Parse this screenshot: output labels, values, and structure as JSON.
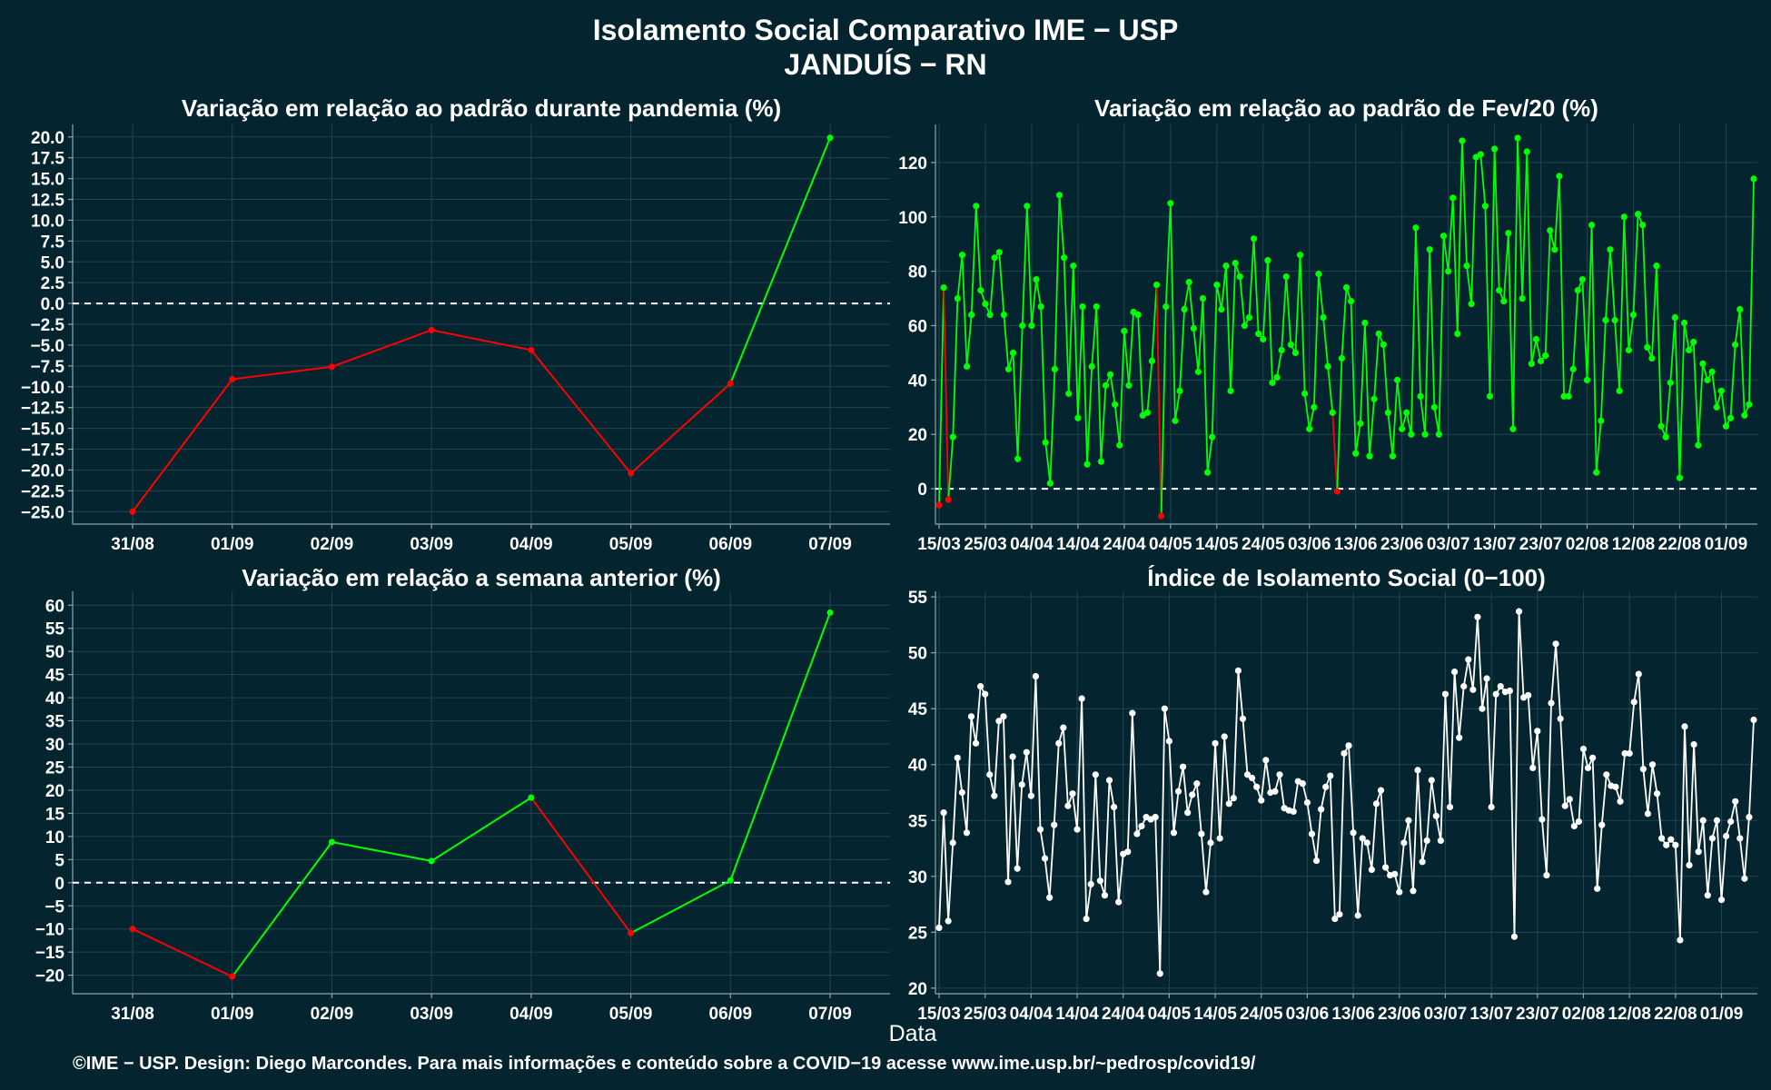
{
  "figure": {
    "title_line1": "Isolamento Social Comparativo IME − USP",
    "title_line2": "JANDUÍS − RN",
    "xlabel": "Data",
    "footer": "©IME − USP. Design: Diego Marcondes. Para mais informações e conteúdo sobre a COVID−19 acesse www.ime.usp.br/~pedrosp/covid19/"
  },
  "colors": {
    "background": "#04252f",
    "positive": "#00ff00",
    "negative": "#ff0000",
    "index_line": "#ffffff",
    "grid": "#1f4550"
  },
  "chart_data": [
    {
      "id": "panel-pandemic",
      "type": "line",
      "title": "Variação em relação ao padrão durante pandemia (%)",
      "categories": [
        "31/08",
        "01/09",
        "02/09",
        "03/09",
        "04/09",
        "05/09",
        "06/09",
        "07/09"
      ],
      "values": [
        -25.0,
        -9.1,
        -7.6,
        -3.2,
        -5.6,
        -20.4,
        -9.6,
        19.9
      ],
      "ylim": [
        -26.5,
        21.5
      ],
      "yticks": [
        20.0,
        17.5,
        15.0,
        12.5,
        10.0,
        7.5,
        5.0,
        2.5,
        0.0,
        -2.5,
        -5.0,
        -7.5,
        -10.0,
        -12.5,
        -15.0,
        -17.5,
        -20.0,
        -22.5,
        -25.0
      ],
      "ytick_labels": [
        "20.0",
        "17.5",
        "15.0",
        "12.5",
        "10.0",
        "7.5",
        "5.0",
        "2.5",
        "0.0",
        "−2.5",
        "−5.0",
        "−7.5",
        "−10.0",
        "−12.5",
        "−15.0",
        "−17.5",
        "−20.0",
        "−22.5",
        "−25.0"
      ],
      "color_rule": "sign",
      "zero_line": true
    },
    {
      "id": "panel-feb",
      "type": "line",
      "title": "Variação em relação ao padrão de Fev/20 (%)",
      "x_tick_labels": [
        "15/03",
        "25/03",
        "04/04",
        "14/04",
        "24/04",
        "04/05",
        "14/05",
        "24/05",
        "03/06",
        "13/06",
        "23/06",
        "03/07",
        "13/07",
        "23/07",
        "02/08",
        "12/08",
        "22/08",
        "01/09"
      ],
      "values": [
        -6,
        74,
        -4,
        19,
        70,
        86,
        45,
        64,
        104,
        73,
        68,
        64,
        85,
        87,
        64,
        44,
        50,
        11,
        60,
        104,
        60,
        77,
        67,
        17,
        2,
        44,
        108,
        85,
        35,
        82,
        26,
        67,
        9,
        45,
        67,
        10,
        38,
        42,
        31,
        16,
        58,
        38,
        65,
        64,
        27,
        28,
        47,
        75,
        -10,
        67,
        105,
        25,
        36,
        66,
        76,
        59,
        43,
        70,
        6,
        19,
        75,
        66,
        82,
        36,
        83,
        78,
        60,
        63,
        92,
        57,
        55,
        84,
        39,
        41,
        51,
        78,
        53,
        50,
        86,
        35,
        22,
        30,
        79,
        63,
        45,
        28,
        -1,
        48,
        74,
        69,
        13,
        24,
        61,
        12,
        33,
        57,
        53,
        28,
        12,
        40,
        22,
        28,
        20,
        96,
        34,
        20,
        88,
        30,
        20,
        93,
        80,
        107,
        57,
        128,
        82,
        68,
        122,
        123,
        104,
        34,
        125,
        73,
        69,
        94,
        22,
        129,
        70,
        124,
        46,
        55,
        47,
        49,
        95,
        88,
        115,
        34,
        34,
        44,
        73,
        77,
        40,
        97,
        6,
        25,
        62,
        88,
        62,
        36,
        100,
        51,
        64,
        101,
        97,
        52,
        48,
        82,
        23,
        19,
        39,
        63,
        4,
        61,
        51,
        54,
        16,
        46,
        40,
        43,
        30,
        36,
        23,
        26,
        53,
        66,
        27,
        31,
        114
      ],
      "ylim": [
        -13,
        134
      ],
      "yticks": [
        0,
        20,
        40,
        60,
        80,
        100,
        120
      ],
      "ytick_labels": [
        "0",
        "20",
        "40",
        "60",
        "80",
        "100",
        "120"
      ],
      "color_rule": "sign",
      "zero_line": true
    },
    {
      "id": "panel-week",
      "type": "line",
      "title": "Variação em relação a semana anterior (%)",
      "categories": [
        "31/08",
        "01/09",
        "02/09",
        "03/09",
        "04/09",
        "05/09",
        "06/09",
        "07/09"
      ],
      "values": [
        -10.0,
        -20.3,
        8.8,
        4.7,
        18.4,
        -10.9,
        0.5,
        58.4
      ],
      "ylim": [
        -24,
        63
      ],
      "yticks": [
        60,
        55,
        50,
        45,
        40,
        35,
        30,
        25,
        20,
        15,
        10,
        5,
        0,
        -5,
        -10,
        -15,
        -20
      ],
      "ytick_labels": [
        "60",
        "55",
        "50",
        "45",
        "40",
        "35",
        "30",
        "25",
        "20",
        "15",
        "10",
        "5",
        "0",
        "−5",
        "−10",
        "−15",
        "−20"
      ],
      "color_rule": "sign",
      "zero_line": true
    },
    {
      "id": "panel-index",
      "type": "line",
      "title": "Índice de Isolamento Social (0−100)",
      "x_tick_labels": [
        "15/03",
        "25/03",
        "04/04",
        "14/04",
        "24/04",
        "04/05",
        "14/05",
        "24/05",
        "03/06",
        "13/06",
        "23/06",
        "03/07",
        "13/07",
        "23/07",
        "02/08",
        "12/08",
        "22/08",
        "01/09"
      ],
      "values": [
        25.4,
        35.7,
        26.0,
        33.0,
        40.6,
        37.5,
        33.9,
        44.3,
        41.9,
        47.0,
        46.3,
        39.1,
        37.2,
        43.9,
        44.3,
        29.5,
        40.7,
        30.7,
        38.2,
        41.1,
        37.2,
        47.9,
        34.2,
        31.6,
        28.1,
        34.6,
        41.9,
        43.3,
        36.3,
        37.4,
        34.2,
        45.9,
        26.2,
        29.3,
        39.1,
        29.6,
        28.3,
        38.6,
        36.2,
        27.7,
        32.0,
        32.2,
        44.6,
        33.8,
        34.5,
        35.3,
        35.1,
        35.3,
        21.3,
        45.0,
        42.1,
        33.9,
        37.6,
        39.8,
        35.7,
        37.3,
        38.3,
        33.8,
        28.6,
        33.0,
        41.9,
        33.4,
        42.5,
        36.5,
        37.0,
        48.4,
        44.1,
        39.1,
        38.8,
        38.0,
        36.8,
        40.4,
        37.5,
        37.6,
        39.1,
        36.1,
        35.9,
        35.8,
        38.5,
        38.3,
        36.6,
        33.8,
        31.4,
        36.0,
        38.0,
        39.0,
        26.2,
        26.6,
        41.0,
        41.7,
        33.9,
        26.5,
        33.4,
        33.0,
        30.6,
        36.5,
        37.7,
        30.8,
        30.1,
        30.2,
        28.6,
        33.0,
        35.0,
        28.7,
        39.5,
        31.3,
        33.2,
        38.6,
        35.4,
        33.2,
        46.3,
        36.2,
        48.3,
        42.4,
        47.0,
        49.4,
        46.7,
        53.2,
        45.0,
        47.7,
        36.2,
        46.3,
        47.0,
        46.5,
        46.6,
        24.6,
        53.7,
        46.0,
        46.2,
        39.7,
        43.0,
        35.1,
        30.1,
        45.5,
        50.8,
        44.1,
        36.3,
        36.9,
        34.5,
        34.9,
        41.4,
        39.7,
        40.6,
        28.9,
        34.6,
        39.1,
        38.1,
        38.0,
        36.7,
        41.0,
        41.0,
        45.6,
        48.1,
        39.6,
        35.6,
        40.0,
        37.4,
        33.4,
        32.8,
        33.3,
        32.8,
        24.3,
        43.4,
        31.0,
        41.8,
        32.2,
        35.0,
        28.3,
        33.4,
        35.0,
        27.9,
        33.6,
        34.9,
        36.7,
        33.4,
        29.8,
        35.3,
        44.0
      ],
      "ylim": [
        19.5,
        55.5
      ],
      "yticks": [
        20,
        25,
        30,
        35,
        40,
        45,
        50,
        55
      ],
      "ytick_labels": [
        "20",
        "25",
        "30",
        "35",
        "40",
        "45",
        "50",
        "55"
      ],
      "color_rule": "white",
      "zero_line": false
    }
  ]
}
